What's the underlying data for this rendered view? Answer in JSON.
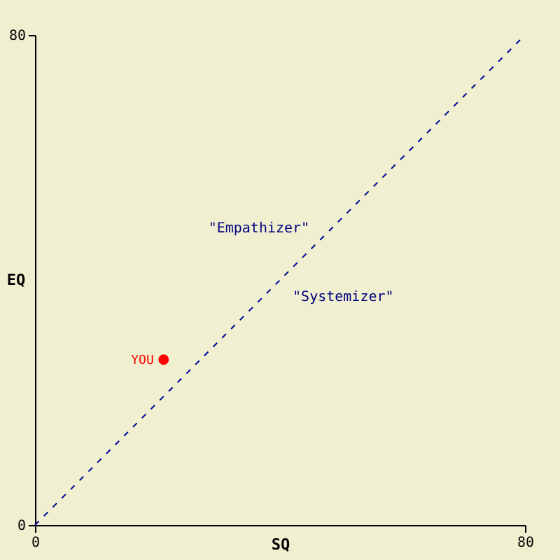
{
  "chart_data": {
    "type": "scatter",
    "xlabel": "SQ",
    "ylabel": "EQ",
    "xlim": [
      0,
      80
    ],
    "ylim": [
      0,
      80
    ],
    "xticks": [
      0,
      80
    ],
    "yticks": [
      0,
      80
    ],
    "series": [
      {
        "type": "line",
        "color": "#00009c",
        "line_style": "dashed",
        "x": [
          0,
          80
        ],
        "values": [
          0,
          80
        ]
      },
      {
        "name": "YOU",
        "color": "#ff0000",
        "marker": "circle",
        "x": [
          21
        ],
        "values": [
          27
        ]
      }
    ],
    "annotations": [
      "\"Empathizer\"",
      "\"Systemizer\""
    ]
  }
}
